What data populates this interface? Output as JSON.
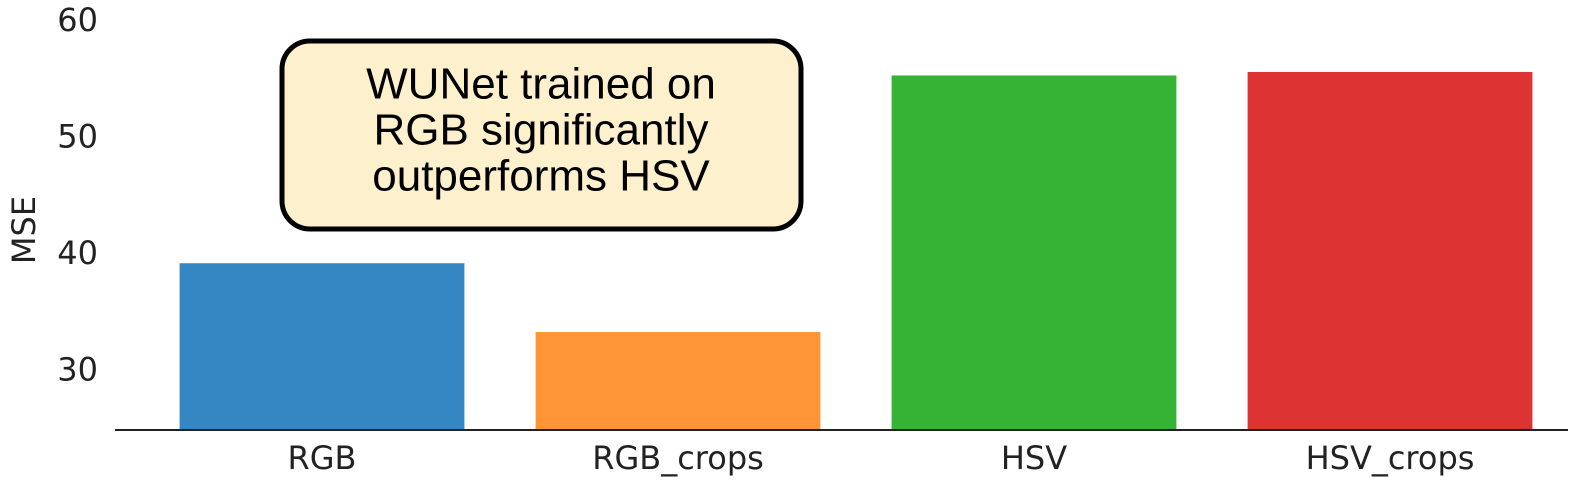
{
  "chart_data": {
    "type": "bar",
    "ylabel": "MSE",
    "annotation": [
      "WUNet trained on",
      "RGB significantly",
      "outperforms HSV"
    ],
    "categories": [
      "RGB",
      "RGB_crops",
      "HSV",
      "HSV_crops"
    ],
    "values": [
      39.3,
      33.4,
      55.4,
      55.7
    ],
    "colors": [
      "#3587c4",
      "#ff9536",
      "#35b335",
      "#dd3333"
    ],
    "ylim": [
      25,
      61.7
    ],
    "yticks": [
      30,
      40,
      50,
      60
    ]
  }
}
